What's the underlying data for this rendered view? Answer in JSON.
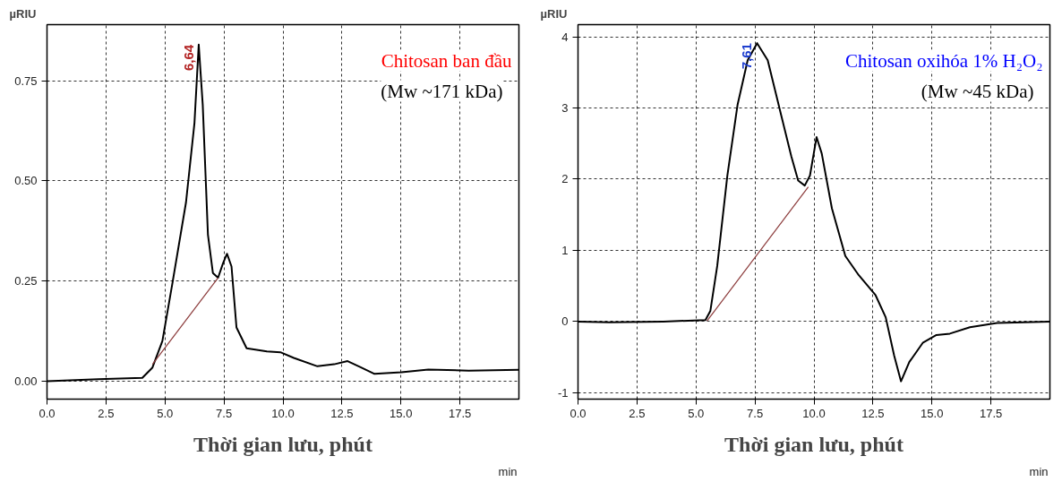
{
  "chart_data": [
    {
      "type": "line",
      "title": "Chitosan ban đầu",
      "subtitle": "(Mw ~171 kDa)",
      "xlabel": "Thời gian lưu, phút",
      "ylabel": "µRIU",
      "annotations": [
        {
          "text": "6,64",
          "x": 6.43,
          "y": 0.84
        },
        "min"
      ],
      "series": [
        {
          "color": "#000000",
          "x": [
            0,
            2.18,
            4.04,
            4.47,
            4.89,
            5.32,
            5.89,
            6.25,
            6.43,
            6.6,
            6.82,
            7.03,
            7.25,
            7.46,
            7.63,
            7.82,
            8.03,
            8.46,
            9.32,
            9.89,
            10.46,
            11.46,
            12.17,
            12.74,
            13.31,
            13.88,
            15.02,
            16.16,
            17.87,
            20.0
          ],
          "values": [
            0,
            0.005,
            0.008,
            0.034,
            0.1,
            0.246,
            0.446,
            0.645,
            0.84,
            0.69,
            0.366,
            0.27,
            0.258,
            0.294,
            0.318,
            0.286,
            0.134,
            0.082,
            0.074,
            0.072,
            0.058,
            0.037,
            0.042,
            0.05,
            0.034,
            0.018,
            0.022,
            0.029,
            0.026,
            0.028
          ]
        },
        {
          "color": "#8b3a3a",
          "x": [
            4.47,
            7.25
          ],
          "values": [
            0.042,
            0.258
          ]
        }
      ],
      "xlim": [
        0,
        20
      ],
      "ylim": [
        -0.045,
        0.89
      ],
      "xticks": [
        {
          "value": 0,
          "label": "0.0"
        },
        2.5,
        {
          "value": 5,
          "label": "5.0"
        },
        7.5,
        {
          "value": 10,
          "label": "10.0"
        },
        12.5,
        {
          "value": 15,
          "label": "15.0"
        },
        17.5
      ],
      "yticks": [
        {
          "value": 0,
          "label": "0.00"
        },
        {
          "value": 0.25,
          "label": "0.25"
        },
        {
          "value": 0.5,
          "label": "0.50"
        },
        {
          "value": 0.75,
          "label": "0.75"
        }
      ],
      "grid": true
    },
    {
      "type": "line",
      "title": "Chitosan oxihóa 1% H₂O₂",
      "subtitle": "(Mw ~45 kDa)",
      "xlabel": "Thời gian lưu, phút",
      "ylabel": "µRIU",
      "annotations": [
        {
          "text": "7,61",
          "x": 7.59,
          "y": 3.91
        },
        "min"
      ],
      "series": [
        {
          "color": "#000000",
          "x": [
            0,
            1.33,
            3.61,
            5.4,
            5.61,
            5.9,
            6.33,
            6.76,
            7.19,
            7.59,
            8.04,
            8.61,
            9.04,
            9.33,
            9.61,
            9.83,
            10.11,
            10.33,
            10.76,
            11.33,
            11.9,
            12.61,
            13.04,
            13.4,
            13.69,
            14.04,
            14.61,
            15.19,
            15.76,
            16.61,
            17.76,
            20.0
          ],
          "values": [
            0,
            -0.01,
            0,
            0.02,
            0.15,
            0.78,
            2.05,
            3.04,
            3.67,
            3.91,
            3.67,
            2.9,
            2.32,
            1.98,
            1.91,
            2.05,
            2.59,
            2.36,
            1.59,
            0.92,
            0.65,
            0.37,
            0.06,
            -0.48,
            -0.84,
            -0.57,
            -0.3,
            -0.19,
            -0.17,
            -0.08,
            -0.02,
            0
          ]
        },
        {
          "color": "#8b3a3a",
          "x": [
            5.47,
            9.76
          ],
          "values": [
            0.01,
            1.89
          ]
        }
      ],
      "xlim": [
        0,
        20
      ],
      "ylim": [
        -1.09,
        4.17
      ],
      "xticks": [
        {
          "value": 0,
          "label": "0.0"
        },
        2.5,
        {
          "value": 5,
          "label": "5.0"
        },
        7.5,
        {
          "value": 10,
          "label": "10.0"
        },
        12.5,
        {
          "value": 15,
          "label": "15.0"
        },
        17.5
      ],
      "yticks": [
        -1,
        0,
        1,
        2,
        3,
        4
      ],
      "grid": true
    }
  ]
}
